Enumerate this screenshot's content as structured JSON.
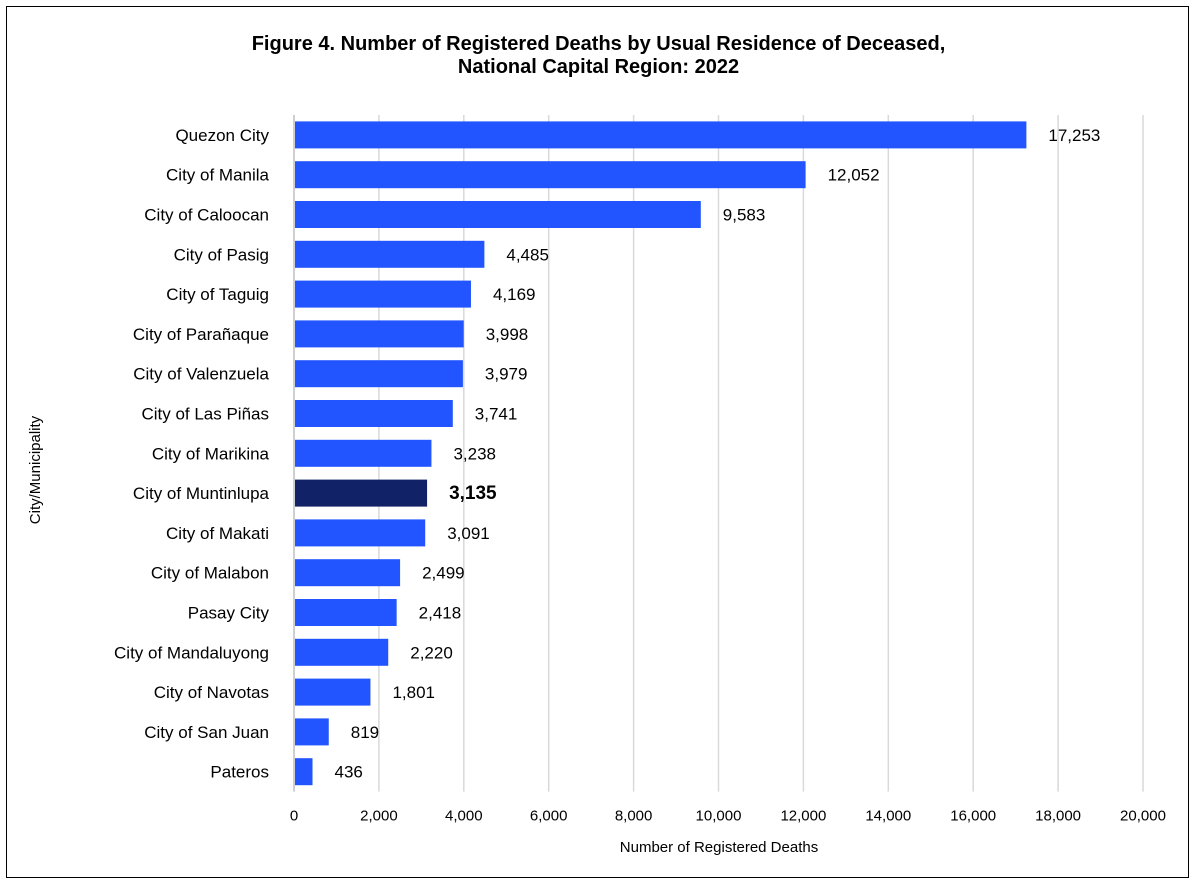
{
  "chart_data": {
    "type": "bar",
    "orientation": "horizontal",
    "title_line1": "Figure 4. Number of Registered Deaths by Usual Residence of Deceased,",
    "title_line2": "National Capital Region: 2022",
    "xlabel": "Number of Registered Deaths",
    "ylabel": "City/Municipality",
    "xlim": [
      0,
      20000
    ],
    "x_ticks": [
      "0",
      "2,000",
      "4,000",
      "6,000",
      "8,000",
      "10,000",
      "12,000",
      "14,000",
      "16,000",
      "18,000",
      "20,000"
    ],
    "x_tick_values": [
      0,
      2000,
      4000,
      6000,
      8000,
      10000,
      12000,
      14000,
      16000,
      18000,
      20000
    ],
    "grid": "vertical",
    "legend": "none",
    "categories": [
      "Quezon City",
      "City of Manila",
      "City of Caloocan",
      "City of Pasig",
      "City of Taguig",
      "City of Parañaque",
      "City of Valenzuela",
      "City of Las Piñas",
      "City of Marikina",
      "City of Muntinlupa",
      "City of Makati",
      "City of Malabon",
      "Pasay City",
      "City of Mandaluyong",
      "City of Navotas",
      "City of San Juan",
      "Pateros"
    ],
    "values": [
      17253,
      12052,
      9583,
      4485,
      4169,
      3998,
      3979,
      3741,
      3238,
      3135,
      3091,
      2499,
      2418,
      2220,
      1801,
      819,
      436
    ],
    "data_labels": [
      "17,253",
      "12,052",
      "9,583",
      "4,485",
      "4,169",
      "3,998",
      "3,979",
      "3,741",
      "3,238",
      "3,135",
      "3,091",
      "2,499",
      "2,418",
      "2,220",
      "1,801",
      "819",
      "436"
    ],
    "highlight_category": "City of Muntinlupa",
    "colors": {
      "bar": "#2255ff",
      "highlight_bar": "#112266",
      "grid": "#d9d9d9",
      "axis": "#bfbfbf",
      "text": "#000000"
    }
  }
}
